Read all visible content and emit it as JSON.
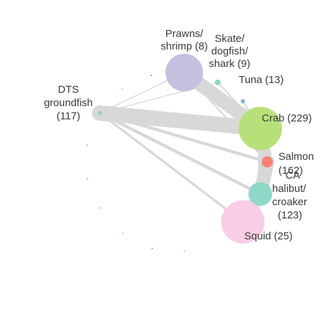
{
  "network": {
    "nodes": [
      {
        "id": "prawns",
        "label_lines": [
          "Prawns/",
          "shrimp (8)"
        ],
        "value": 8,
        "color": "#c4c1e0"
      },
      {
        "id": "skate",
        "label_lines": [
          "Skate/",
          "dogfish/",
          "shark (9)"
        ],
        "value": 9,
        "color": "#8fd4c4"
      },
      {
        "id": "tuna",
        "label_lines": [
          "Tuna (13)"
        ],
        "value": 13,
        "color": "#80b1d3"
      },
      {
        "id": "dts",
        "label_lines": [
          "DTS",
          "groundfish",
          "(117)"
        ],
        "value": 117,
        "color": "#8fd4c4"
      },
      {
        "id": "crab",
        "label_lines": [
          "Crab (229)"
        ],
        "value": 229,
        "color": "#b8e07a"
      },
      {
        "id": "salmon",
        "label_lines": [
          "Salmon",
          "(162)"
        ],
        "value": 162,
        "color": "#fb8072"
      },
      {
        "id": "ca_halibut",
        "label_lines": [
          "CA",
          "halibut/",
          "croaker",
          "(123)"
        ],
        "value": 123,
        "color": "#8fd8c8"
      },
      {
        "id": "squid",
        "label_lines": [
          "Squid (25)"
        ],
        "value": 25,
        "color": "#f9cde5"
      }
    ],
    "edges": [
      {
        "from": "dts",
        "to": "crab",
        "weight": 10
      },
      {
        "from": "prawns",
        "to": "crab",
        "weight": 9
      },
      {
        "from": "crab",
        "to": "salmon",
        "weight": 7
      },
      {
        "from": "salmon",
        "to": "ca_halibut",
        "weight": 9
      },
      {
        "from": "crab",
        "to": "ca_halibut",
        "weight": 3
      },
      {
        "from": "dts",
        "to": "ca_halibut",
        "weight": 2
      },
      {
        "from": "dts",
        "to": "salmon",
        "weight": 2
      },
      {
        "from": "dts",
        "to": "squid",
        "weight": 1.5
      },
      {
        "from": "dts",
        "to": "skate",
        "weight": 0.6
      },
      {
        "from": "dts",
        "to": "prawns",
        "weight": 0.6
      },
      {
        "from": "prawns",
        "to": "salmon",
        "weight": 1
      },
      {
        "from": "skate",
        "to": "crab",
        "weight": 1
      },
      {
        "from": "tuna",
        "to": "crab",
        "weight": 1
      },
      {
        "from": "ca_halibut",
        "to": "squid",
        "weight": 8
      }
    ],
    "isolated_nodes": [
      {
        "color": "#8c7aa8"
      },
      {
        "color": "#8fd4c4"
      },
      {
        "color": "#b89a7a"
      },
      {
        "color": "#b89a7a"
      },
      {
        "color": "#f5a050"
      },
      {
        "color": "#8fd4c4"
      },
      {
        "color": "#a08a9a"
      },
      {
        "color": "#b8b0a8"
      }
    ]
  }
}
